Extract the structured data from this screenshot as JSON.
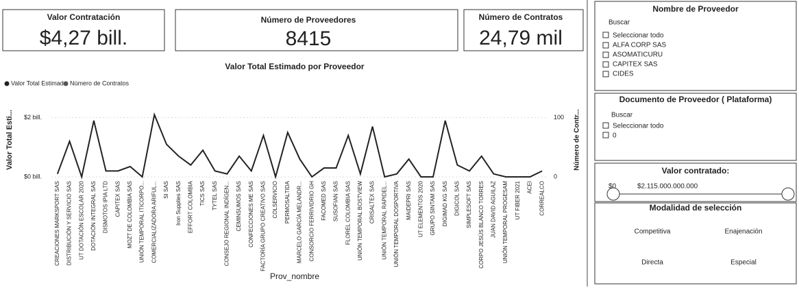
{
  "kpis": [
    {
      "title": "Valor Contratación",
      "value": "$4,27 bill."
    },
    {
      "title": "Número de Proveedores",
      "value": "8415"
    },
    {
      "title": "Número de Contratos",
      "value": "24,79 mil"
    }
  ],
  "chart_data": {
    "type": "line",
    "title": "Valor Total Estimado por Proveedor",
    "x_label": "Prov_nombre",
    "y_label": "Valor Total Esti...",
    "y2_label": "Número de Contr...",
    "categories": [
      "CREACIONES MARKSPORT SAS",
      "DISTRIBUCIÓN Y SERVICIO SAS",
      "UT DOTACIÓN ESCOLAR 2020",
      "DOTACIÓN INTEGRAL SAS",
      "DISMOTOS IPIA LTD",
      "CAPITEX SAS",
      "MOZT DE COLOMBIA SAS",
      "UNIÓN TEMPORAL ITICORPO...",
      "COMERCIALIZADORA ARIFUL...",
      "SI SAS",
      "Iron Supplies SAS",
      "EFFORT COLOMBIA",
      "TICS SAS",
      "TYTEL SAS",
      "CONSEJO REGIONAL INDÍGEN...",
      "CEMINSUMOS SAS",
      "CONFECCIONES ME SAS",
      "FACTORÍA GRUPO CREATIVO SAS",
      "COLSERVICIO",
      "PERMOSALTIDA",
      "MARCELO GARCÍA MELANDR...",
      "CONSORCIO FERRIVIDRIO GH",
      "FACOMED SAS",
      "SUSOFIAN SAS",
      "FLOREL COLOMBIA SAS",
      "UNIÓN TEMPORAL BOSTVIEW",
      "CRISALTEX SAS",
      "UNIÓN TEMPORAL RAPIDEL...",
      "UNIÓN TEMPORAL DOSPORTIVA",
      "MAIDEPRI SAS",
      "UT ELEMENTOS 2020",
      "GRUPO SINTAM SAS",
      "DIGIMAD KG SAS",
      "DIGICOL SAS",
      "SIMPLESOFT SAS",
      "CORPO JESÚS BLANCO TORRES",
      "JUAN DAVID AGUILAZ",
      "UNIÓN TEMPORAL PROGESAM",
      "UT FIBER 2021",
      "ACEI",
      "CORREALCO"
    ],
    "series": [
      {
        "name": "Valor Total Estimado",
        "color": "#222222",
        "values": [
          0.1,
          1.2,
          0,
          1.9,
          0.2,
          0.2,
          0.35,
          0,
          2.1,
          1.1,
          0.7,
          0.4,
          0.9,
          0.2,
          0.1,
          0.7,
          0.2,
          1.4,
          0,
          1.5,
          0.6,
          0,
          0.3,
          0.3,
          1.4,
          0.1,
          1.7,
          0,
          0.1,
          0.6,
          0,
          0,
          1.9,
          0.4,
          0.2,
          0.7,
          0.1,
          0,
          0,
          0,
          0.2
        ]
      },
      {
        "name": "Número de Contratos",
        "color": "#555555",
        "axis": "y2",
        "values": [
          null,
          null,
          null,
          null,
          null,
          null,
          null,
          null,
          null,
          null,
          null,
          null,
          null,
          null,
          null,
          null,
          null,
          null,
          null,
          null,
          null,
          null,
          null,
          null,
          null,
          null,
          null,
          null,
          null,
          null,
          null,
          null,
          null,
          null,
          null,
          null,
          null,
          null,
          null,
          null,
          null
        ]
      }
    ],
    "ylim": [
      0,
      2.5
    ],
    "yticks": [
      {
        "value": 0,
        "label": "$0 bill."
      },
      {
        "value": 2,
        "label": "$2 bill."
      }
    ],
    "y2lim": [
      0,
      125
    ],
    "y2ticks": [
      0,
      100
    ]
  },
  "slicers": {
    "proveedor": {
      "title": "Nombre de Proveedor",
      "search": "Buscar",
      "select_all": "Seleccionar todo",
      "items": [
        "ALFA CORP SAS",
        "ASOMATICURU",
        "CAPITEX SAS",
        "CIDES"
      ]
    },
    "documento": {
      "title": "Documento de Proveedor ( Plataforma)",
      "search": "Buscar",
      "select_all": "Seleccionar todo",
      "items": [
        "0"
      ]
    },
    "valor": {
      "title": "Valor contratado:",
      "min": "$0",
      "max": "$2.115.000.000.000"
    },
    "modalidad": {
      "title": "Modalidad de selección",
      "items": [
        "Competitiva",
        "Enajenación",
        "Directa",
        "Especial"
      ]
    }
  }
}
